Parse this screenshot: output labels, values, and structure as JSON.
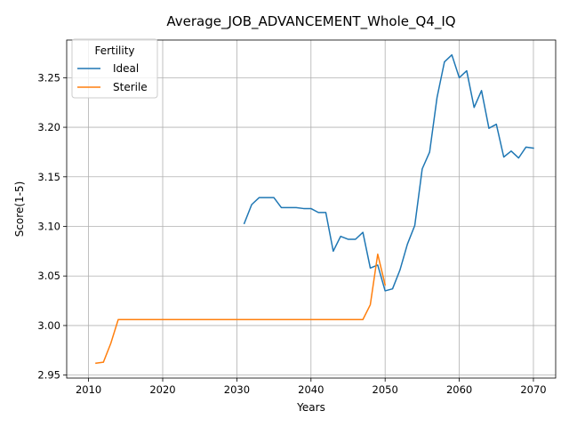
{
  "chart_data": {
    "type": "line",
    "title": "Average_JOB_ADVANCEMENT_Whole_Q4_IQ",
    "xlabel": "Years",
    "ylabel": "Score(1-5)",
    "xlim": [
      2007.05,
      2073.0
    ],
    "ylim": [
      2.947,
      3.288
    ],
    "xticks": [
      2010,
      2020,
      2030,
      2040,
      2050,
      2060,
      2070
    ],
    "yticks": [
      2.95,
      3.0,
      3.05,
      3.1,
      3.15,
      3.2,
      3.25
    ],
    "ytick_labels": [
      "2.95",
      "3.00",
      "3.05",
      "3.10",
      "3.15",
      "3.20",
      "3.25"
    ],
    "grid": true,
    "legend": {
      "title": "Fertility",
      "position": "top-left"
    },
    "series": [
      {
        "name": "Ideal",
        "color": "#1f77b4",
        "x": [
          2031,
          2032,
          2033,
          2034,
          2035,
          2036,
          2037,
          2038,
          2039,
          2040,
          2041,
          2042,
          2043,
          2044,
          2045,
          2046,
          2047,
          2048,
          2049,
          2050,
          2051,
          2052,
          2053,
          2054,
          2055,
          2056,
          2057,
          2058,
          2059,
          2060,
          2061,
          2062,
          2063,
          2064,
          2065,
          2066,
          2067,
          2068,
          2069,
          2070
        ],
        "y": [
          3.103,
          3.122,
          3.129,
          3.129,
          3.129,
          3.119,
          3.119,
          3.119,
          3.118,
          3.118,
          3.114,
          3.114,
          3.075,
          3.09,
          3.087,
          3.087,
          3.094,
          3.058,
          3.061,
          3.035,
          3.037,
          3.056,
          3.082,
          3.101,
          3.158,
          3.175,
          3.23,
          3.266,
          3.273,
          3.25,
          3.257,
          3.22,
          3.237,
          3.199,
          3.203,
          3.17,
          3.176,
          3.169,
          3.18,
          3.179
        ]
      },
      {
        "name": "Sterile",
        "color": "#ff7f0e",
        "x": [
          2011,
          2012,
          2013,
          2014,
          2015,
          2016,
          2017,
          2018,
          2019,
          2020,
          2021,
          2022,
          2023,
          2024,
          2025,
          2026,
          2027,
          2028,
          2029,
          2030,
          2031,
          2032,
          2033,
          2034,
          2035,
          2036,
          2037,
          2038,
          2039,
          2040,
          2041,
          2042,
          2043,
          2044,
          2045,
          2046,
          2047,
          2048,
          2049,
          2050
        ],
        "y": [
          2.962,
          2.963,
          2.982,
          3.006,
          3.006,
          3.006,
          3.006,
          3.006,
          3.006,
          3.006,
          3.006,
          3.006,
          3.006,
          3.006,
          3.006,
          3.006,
          3.006,
          3.006,
          3.006,
          3.006,
          3.006,
          3.006,
          3.006,
          3.006,
          3.006,
          3.006,
          3.006,
          3.006,
          3.006,
          3.006,
          3.006,
          3.006,
          3.006,
          3.006,
          3.006,
          3.006,
          3.006,
          3.021,
          3.072,
          3.041
        ]
      }
    ]
  }
}
